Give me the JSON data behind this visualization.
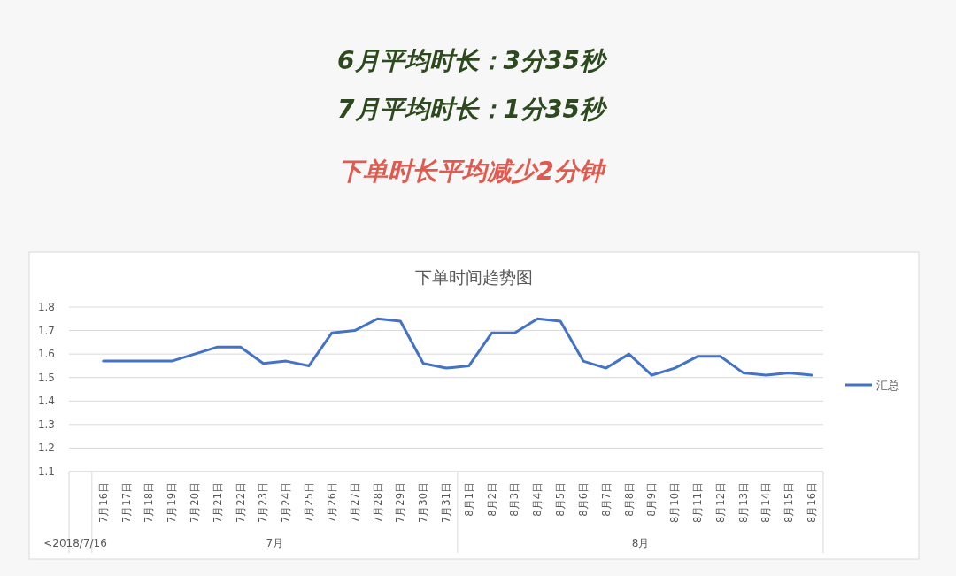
{
  "chart_data": {
    "type": "line",
    "title": "下单时间趋势图",
    "annotations": [
      "6月平均时长：3分35秒",
      "7月平均时长：1分35秒",
      "下单时长平均减少2分钟",
      "<2018/7/16",
      "7月",
      "8月"
    ],
    "categories": [
      null,
      "7月16日",
      "7月17日",
      "7月18日",
      "7月19日",
      "7月20日",
      "7月21日",
      "7月22日",
      "7月23日",
      "7月24日",
      "7月25日",
      "7月26日",
      "7月27日",
      "7月28日",
      "7月29日",
      "7月30日",
      "7月31日",
      "8月1日",
      "8月2日",
      "8月3日",
      "8月4日",
      "8月5日",
      "8月6日",
      "8月7日",
      "8月8日",
      "8月9日",
      "8月10日",
      "8月11日",
      "8月12日",
      "8月13日",
      "8月14日",
      "8月15日",
      "8月16日"
    ],
    "series": [
      {
        "name": "汇总",
        "color": "#4472c4",
        "values": [
          null,
          1.57,
          1.57,
          1.57,
          1.57,
          1.6,
          1.63,
          1.63,
          1.56,
          1.57,
          1.55,
          1.69,
          1.7,
          1.75,
          1.74,
          1.56,
          1.54,
          1.55,
          1.69,
          1.69,
          1.75,
          1.74,
          1.57,
          1.54,
          1.6,
          1.51,
          1.54,
          1.59,
          1.59,
          1.52,
          1.51,
          1.52,
          1.51
        ]
      }
    ],
    "ylim": [
      1.1,
      1.8
    ],
    "yticks": [
      1.1,
      1.2,
      1.3,
      1.4,
      1.5,
      1.6,
      1.7,
      1.8
    ],
    "grid": "y",
    "legend": "right",
    "marker": "none",
    "line_style": "solid"
  }
}
